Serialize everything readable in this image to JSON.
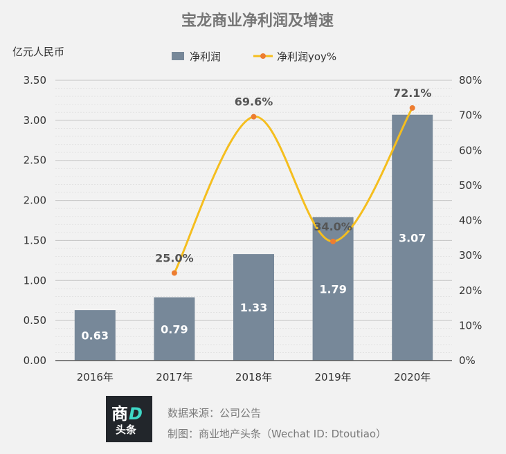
{
  "chart_data": {
    "type": "bar+line",
    "title": "宝龙商业净利润及增速",
    "left_unit_label": "亿元人民币",
    "categories": [
      "2016年",
      "2017年",
      "2018年",
      "2019年",
      "2020年"
    ],
    "bar_series": {
      "name": "净利润",
      "values": [
        0.63,
        0.79,
        1.33,
        1.79,
        3.07
      ],
      "labels": [
        "0.63",
        "0.79",
        "1.33",
        "1.79",
        "3.07"
      ],
      "color": "#778899"
    },
    "line_series": {
      "name": "净利润yoy%",
      "values": [
        null,
        25.0,
        69.6,
        34.0,
        72.1
      ],
      "labels": [
        "",
        "25.0%",
        "69.6%",
        "34.0%",
        "72.1%"
      ],
      "color": "#f5be1e",
      "marker_color": "#ed7d31",
      "smooth": true
    },
    "y_left": {
      "min": 0,
      "max": 3.5,
      "ticks": [
        "0.00",
        "0.50",
        "1.00",
        "1.50",
        "2.00",
        "2.50",
        "3.00",
        "3.50"
      ]
    },
    "y_right": {
      "min": 0,
      "max": 80,
      "ticks": [
        "0%",
        "10%",
        "20%",
        "30%",
        "40%",
        "50%",
        "60%",
        "70%",
        "80%"
      ]
    },
    "grid": true,
    "legend_position": "top"
  },
  "footer": {
    "logo_text_main": "商",
    "logo_text_d": "D",
    "logo_text_sub": "头条",
    "source_line": "数据来源：公司公告",
    "credit_line": "制图：商业地产头条（Wechat ID: Dtoutiao）"
  }
}
